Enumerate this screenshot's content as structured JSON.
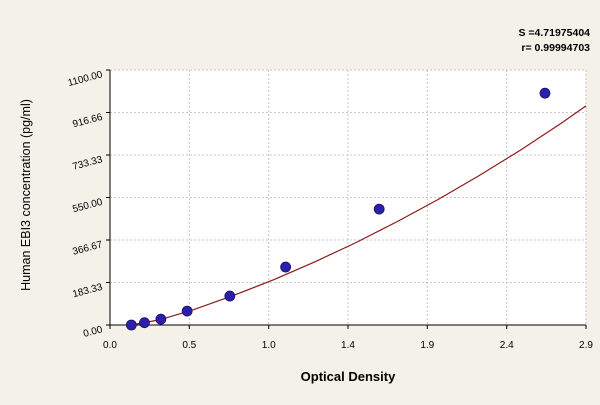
{
  "chart_data": {
    "type": "scatter",
    "xlabel": "Optical Density",
    "ylabel": "Human EBI3 concentration (pg/ml)",
    "xlim": [
      0.0,
      2.9
    ],
    "ylim": [
      0.0,
      1100.0
    ],
    "x_ticks": [
      "0.0",
      "0.5",
      "1.0",
      "1.4",
      "1.9",
      "2.4",
      "2.9"
    ],
    "x_tick_values": [
      0.0,
      0.483,
      0.967,
      1.45,
      1.933,
      2.417,
      2.9
    ],
    "y_ticks": [
      "0.00",
      "183.33",
      "366.67",
      "550.00",
      "733.33",
      "916.66",
      "1100.00"
    ],
    "y_tick_values": [
      0.0,
      183.33,
      366.67,
      550.0,
      733.33,
      916.66,
      1100.0
    ],
    "grid": true,
    "annotations": [
      "S =4.71975404",
      "r= 0.99994703"
    ],
    "series": [
      {
        "points": [
          {
            "x": 0.13,
            "y": 0
          },
          {
            "x": 0.21,
            "y": 10
          },
          {
            "x": 0.31,
            "y": 25
          },
          {
            "x": 0.47,
            "y": 60
          },
          {
            "x": 0.73,
            "y": 125
          },
          {
            "x": 1.07,
            "y": 250
          },
          {
            "x": 1.64,
            "y": 500
          },
          {
            "x": 2.65,
            "y": 1000
          }
        ],
        "color": "#2c1fa8"
      }
    ],
    "fit_curve": {
      "x": [
        0.13,
        0.3,
        0.5,
        0.75,
        1.0,
        1.25,
        1.5,
        1.75,
        2.0,
        2.25,
        2.5,
        2.75,
        2.9
      ],
      "y": [
        0,
        22,
        64,
        127,
        196,
        273,
        356,
        446,
        542,
        645,
        754,
        871,
        945
      ],
      "color": "#8b1a1a"
    },
    "colors": {
      "background": "#f3f1e8",
      "plot_background": "#ffffff",
      "grid": "#b8b8b8",
      "axis": "#000000"
    }
  }
}
